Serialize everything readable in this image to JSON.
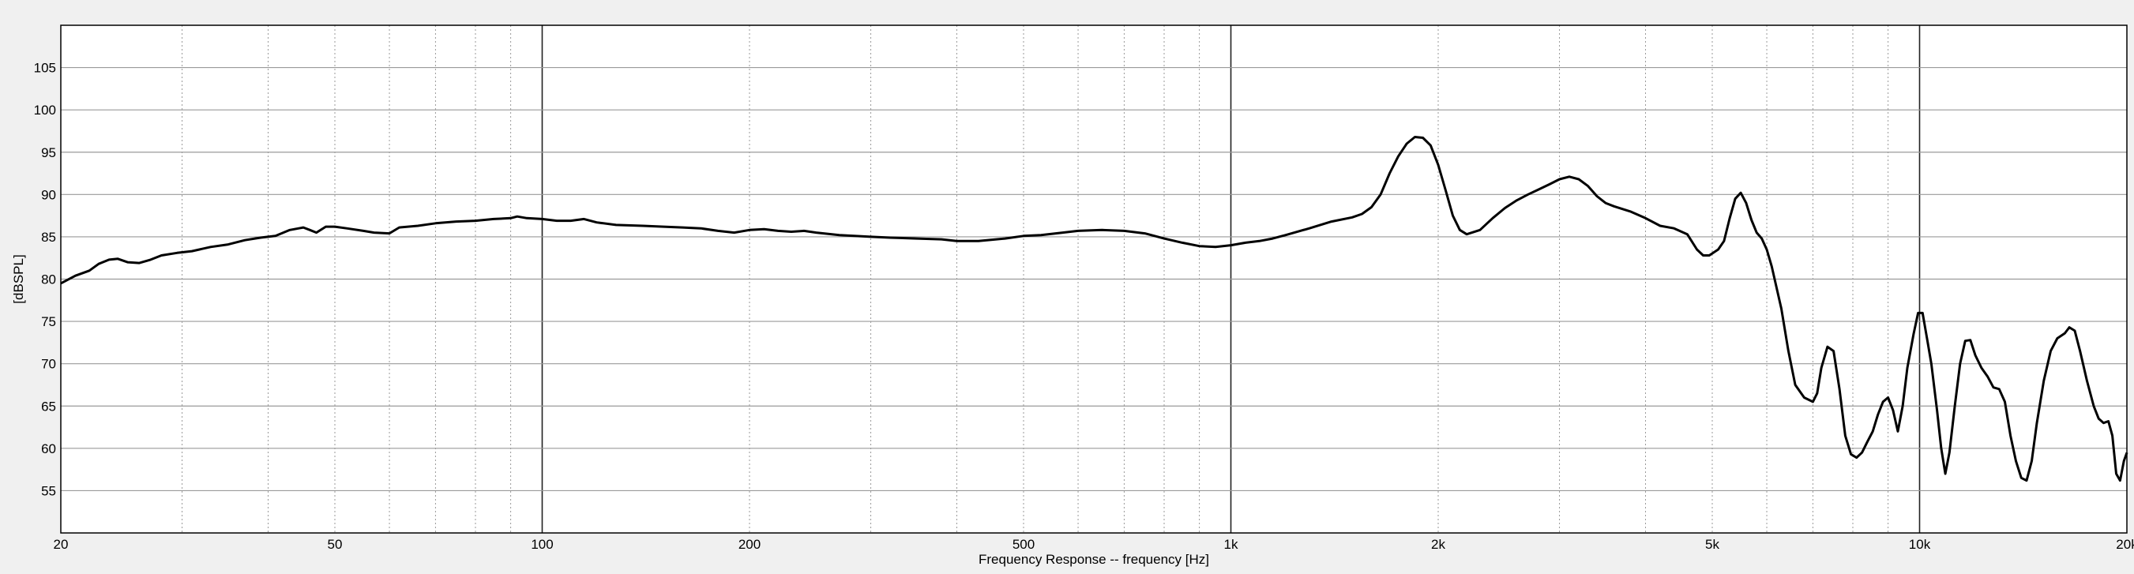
{
  "chart_data": {
    "type": "line",
    "xscale": "log",
    "xlabel": "Frequency Response -- frequency [Hz]",
    "ylabel": "[dBSPL]",
    "xlim": [
      20,
      20000
    ],
    "ylim": [
      50,
      110
    ],
    "grid": true,
    "x_ticks": [
      {
        "value": 20,
        "label": "20"
      },
      {
        "value": 50,
        "label": "50"
      },
      {
        "value": 100,
        "label": "100"
      },
      {
        "value": 200,
        "label": "200"
      },
      {
        "value": 500,
        "label": "500"
      },
      {
        "value": 1000,
        "label": "1k"
      },
      {
        "value": 2000,
        "label": "2k"
      },
      {
        "value": 5000,
        "label": "5k"
      },
      {
        "value": 10000,
        "label": "10k"
      },
      {
        "value": 20000,
        "label": "20k"
      }
    ],
    "y_ticks": [
      55,
      60,
      65,
      70,
      75,
      80,
      85,
      90,
      95,
      100,
      105
    ],
    "series": [
      {
        "color": "#000000",
        "points": [
          [
            20,
            79.5
          ],
          [
            21,
            80.4
          ],
          [
            22,
            81.0
          ],
          [
            22.7,
            81.8
          ],
          [
            23.5,
            82.3
          ],
          [
            24.2,
            82.4
          ],
          [
            25,
            82.0
          ],
          [
            26,
            81.9
          ],
          [
            27,
            82.3
          ],
          [
            28,
            82.8
          ],
          [
            29.5,
            83.1
          ],
          [
            31,
            83.3
          ],
          [
            33,
            83.8
          ],
          [
            35,
            84.1
          ],
          [
            37,
            84.6
          ],
          [
            39,
            84.9
          ],
          [
            41,
            85.1
          ],
          [
            43,
            85.8
          ],
          [
            45,
            86.1
          ],
          [
            46,
            85.8
          ],
          [
            47,
            85.5
          ],
          [
            48.5,
            86.2
          ],
          [
            50,
            86.2
          ],
          [
            52,
            86.0
          ],
          [
            55,
            85.7
          ],
          [
            57,
            85.5
          ],
          [
            60,
            85.4
          ],
          [
            62,
            86.1
          ],
          [
            66,
            86.3
          ],
          [
            70,
            86.6
          ],
          [
            75,
            86.8
          ],
          [
            80,
            86.9
          ],
          [
            85,
            87.1
          ],
          [
            90,
            87.2
          ],
          [
            92,
            87.4
          ],
          [
            95,
            87.2
          ],
          [
            100,
            87.1
          ],
          [
            105,
            86.9
          ],
          [
            110,
            86.9
          ],
          [
            115,
            87.1
          ],
          [
            120,
            86.7
          ],
          [
            128,
            86.4
          ],
          [
            140,
            86.3
          ],
          [
            150,
            86.2
          ],
          [
            160,
            86.1
          ],
          [
            170,
            86.0
          ],
          [
            180,
            85.7
          ],
          [
            190,
            85.5
          ],
          [
            200,
            85.8
          ],
          [
            210,
            85.9
          ],
          [
            220,
            85.7
          ],
          [
            230,
            85.6
          ],
          [
            240,
            85.7
          ],
          [
            250,
            85.5
          ],
          [
            270,
            85.2
          ],
          [
            300,
            85.0
          ],
          [
            320,
            84.9
          ],
          [
            350,
            84.8
          ],
          [
            380,
            84.7
          ],
          [
            400,
            84.5
          ],
          [
            430,
            84.5
          ],
          [
            470,
            84.8
          ],
          [
            500,
            85.1
          ],
          [
            530,
            85.2
          ],
          [
            570,
            85.5
          ],
          [
            600,
            85.7
          ],
          [
            650,
            85.8
          ],
          [
            700,
            85.7
          ],
          [
            750,
            85.4
          ],
          [
            800,
            84.8
          ],
          [
            850,
            84.3
          ],
          [
            900,
            83.9
          ],
          [
            950,
            83.8
          ],
          [
            1000,
            84.0
          ],
          [
            1050,
            84.3
          ],
          [
            1100,
            84.5
          ],
          [
            1150,
            84.8
          ],
          [
            1200,
            85.2
          ],
          [
            1300,
            86.0
          ],
          [
            1400,
            86.8
          ],
          [
            1500,
            87.3
          ],
          [
            1550,
            87.7
          ],
          [
            1600,
            88.5
          ],
          [
            1650,
            90.0
          ],
          [
            1700,
            92.5
          ],
          [
            1750,
            94.5
          ],
          [
            1800,
            96.0
          ],
          [
            1850,
            96.8
          ],
          [
            1900,
            96.7
          ],
          [
            1950,
            95.8
          ],
          [
            2000,
            93.5
          ],
          [
            2050,
            90.5
          ],
          [
            2100,
            87.5
          ],
          [
            2150,
            85.8
          ],
          [
            2200,
            85.3
          ],
          [
            2300,
            85.8
          ],
          [
            2400,
            87.2
          ],
          [
            2500,
            88.4
          ],
          [
            2600,
            89.3
          ],
          [
            2700,
            90.0
          ],
          [
            2800,
            90.6
          ],
          [
            2900,
            91.2
          ],
          [
            3000,
            91.8
          ],
          [
            3100,
            92.1
          ],
          [
            3200,
            91.8
          ],
          [
            3300,
            91.0
          ],
          [
            3400,
            89.8
          ],
          [
            3500,
            89.0
          ],
          [
            3600,
            88.6
          ],
          [
            3800,
            88.0
          ],
          [
            4000,
            87.2
          ],
          [
            4200,
            86.3
          ],
          [
            4400,
            86.0
          ],
          [
            4600,
            85.3
          ],
          [
            4750,
            83.5
          ],
          [
            4850,
            82.8
          ],
          [
            4950,
            82.8
          ],
          [
            5100,
            83.5
          ],
          [
            5200,
            84.5
          ],
          [
            5300,
            87.2
          ],
          [
            5400,
            89.5
          ],
          [
            5500,
            90.2
          ],
          [
            5600,
            89.0
          ],
          [
            5700,
            87.0
          ],
          [
            5800,
            85.5
          ],
          [
            5900,
            84.8
          ],
          [
            6000,
            83.5
          ],
          [
            6100,
            81.5
          ],
          [
            6300,
            76.5
          ],
          [
            6450,
            71.5
          ],
          [
            6600,
            67.5
          ],
          [
            6800,
            66.0
          ],
          [
            7000,
            65.5
          ],
          [
            7100,
            66.5
          ],
          [
            7200,
            69.5
          ],
          [
            7350,
            72.0
          ],
          [
            7500,
            71.5
          ],
          [
            7650,
            67.0
          ],
          [
            7800,
            61.5
          ],
          [
            7950,
            59.3
          ],
          [
            8100,
            58.9
          ],
          [
            8250,
            59.5
          ],
          [
            8400,
            60.8
          ],
          [
            8550,
            62.0
          ],
          [
            8700,
            64.0
          ],
          [
            8850,
            65.5
          ],
          [
            9000,
            66.0
          ],
          [
            9150,
            64.5
          ],
          [
            9300,
            62.0
          ],
          [
            9450,
            65.0
          ],
          [
            9600,
            69.5
          ],
          [
            9800,
            73.5
          ],
          [
            9950,
            76.0
          ],
          [
            10100,
            76.0
          ],
          [
            10250,
            73.0
          ],
          [
            10400,
            70.0
          ],
          [
            10600,
            64.5
          ],
          [
            10750,
            60.0
          ],
          [
            10900,
            57.0
          ],
          [
            11050,
            59.5
          ],
          [
            11250,
            65.0
          ],
          [
            11450,
            70.0
          ],
          [
            11650,
            72.7
          ],
          [
            11850,
            72.8
          ],
          [
            12050,
            71.0
          ],
          [
            12300,
            69.5
          ],
          [
            12550,
            68.5
          ],
          [
            12800,
            67.2
          ],
          [
            13050,
            67.0
          ],
          [
            13300,
            65.5
          ],
          [
            13550,
            61.5
          ],
          [
            13800,
            58.5
          ],
          [
            14050,
            56.5
          ],
          [
            14300,
            56.2
          ],
          [
            14550,
            58.5
          ],
          [
            14800,
            63.0
          ],
          [
            15150,
            68.0
          ],
          [
            15500,
            71.5
          ],
          [
            15850,
            73.0
          ],
          [
            16250,
            73.6
          ],
          [
            16500,
            74.3
          ],
          [
            16800,
            73.9
          ],
          [
            17100,
            71.5
          ],
          [
            17500,
            68.0
          ],
          [
            17900,
            65.0
          ],
          [
            18200,
            63.5
          ],
          [
            18500,
            63.0
          ],
          [
            18800,
            63.2
          ],
          [
            19050,
            61.5
          ],
          [
            19300,
            57.0
          ],
          [
            19550,
            56.2
          ],
          [
            19800,
            58.5
          ],
          [
            20000,
            59.5
          ]
        ]
      }
    ]
  }
}
